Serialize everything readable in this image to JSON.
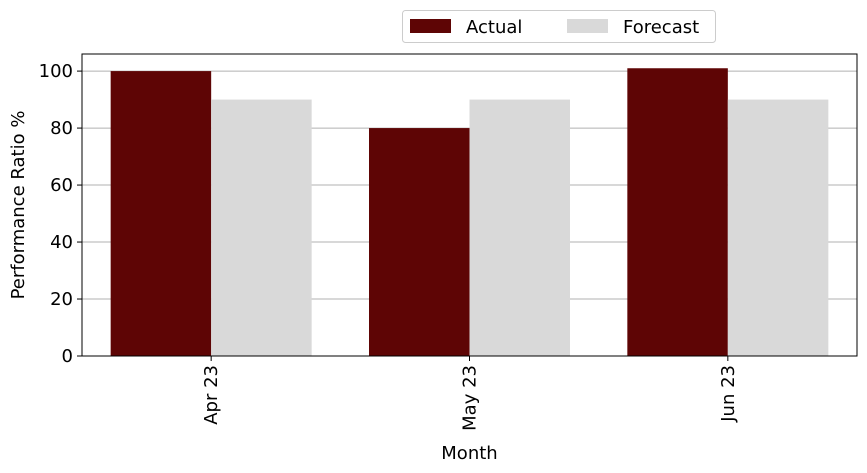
{
  "chart_data": {
    "type": "bar",
    "categories": [
      "Apr 23",
      "May 23",
      "Jun 23"
    ],
    "series": [
      {
        "name": "Actual",
        "values": [
          100,
          80,
          101
        ],
        "color": "#5e0505"
      },
      {
        "name": "Forecast",
        "values": [
          90,
          90,
          90
        ],
        "color": "#d9d9d9"
      }
    ],
    "xlabel": "Month",
    "ylabel": "Performance Ratio %",
    "ylim": [
      0,
      106
    ],
    "yticks": [
      0,
      20,
      40,
      60,
      80,
      100
    ],
    "grid": "y",
    "legend_position": "top-center, outside"
  }
}
